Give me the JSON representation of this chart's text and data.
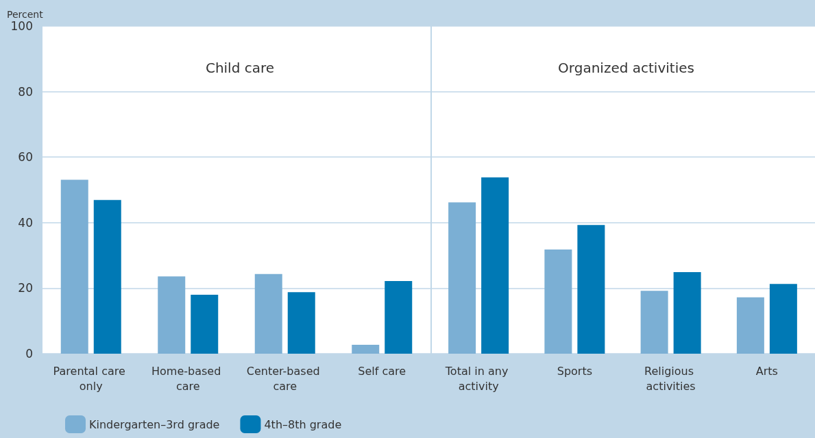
{
  "chart_data": [
    {
      "type": "bar",
      "title": "Child care",
      "ylabel": "Percent",
      "categories": [
        "Parental care only",
        "Home-based care",
        "Center-based care",
        "Self care"
      ],
      "series": [
        {
          "name": "Kindergarten–3rd grade",
          "color": "#7bafd4",
          "values": [
            53.1,
            23.6,
            24.3,
            2.7
          ]
        },
        {
          "name": "4th–8th grade",
          "color": "#0079b5",
          "values": [
            46.9,
            18.0,
            18.8,
            22.2
          ]
        }
      ],
      "ylim": [
        0,
        100
      ],
      "yticks": [
        0,
        20,
        40,
        60,
        80,
        100
      ],
      "grid": "y",
      "legend": "bottom left"
    },
    {
      "type": "bar",
      "title": "Organized activities",
      "categories": [
        "Total in any activity",
        "Sports",
        "Religious activities",
        "Arts"
      ],
      "series": [
        {
          "color": "#7bafd4",
          "values": [
            46.2,
            31.8,
            19.2,
            17.2
          ]
        },
        {
          "color": "#0079b5",
          "values": [
            53.8,
            39.3,
            24.9,
            21.3
          ]
        }
      ],
      "ylim": [
        0,
        100
      ],
      "yticks": [
        0,
        20,
        40,
        60,
        80,
        100
      ],
      "grid": "y",
      "tick_labels": "x"
    }
  ]
}
